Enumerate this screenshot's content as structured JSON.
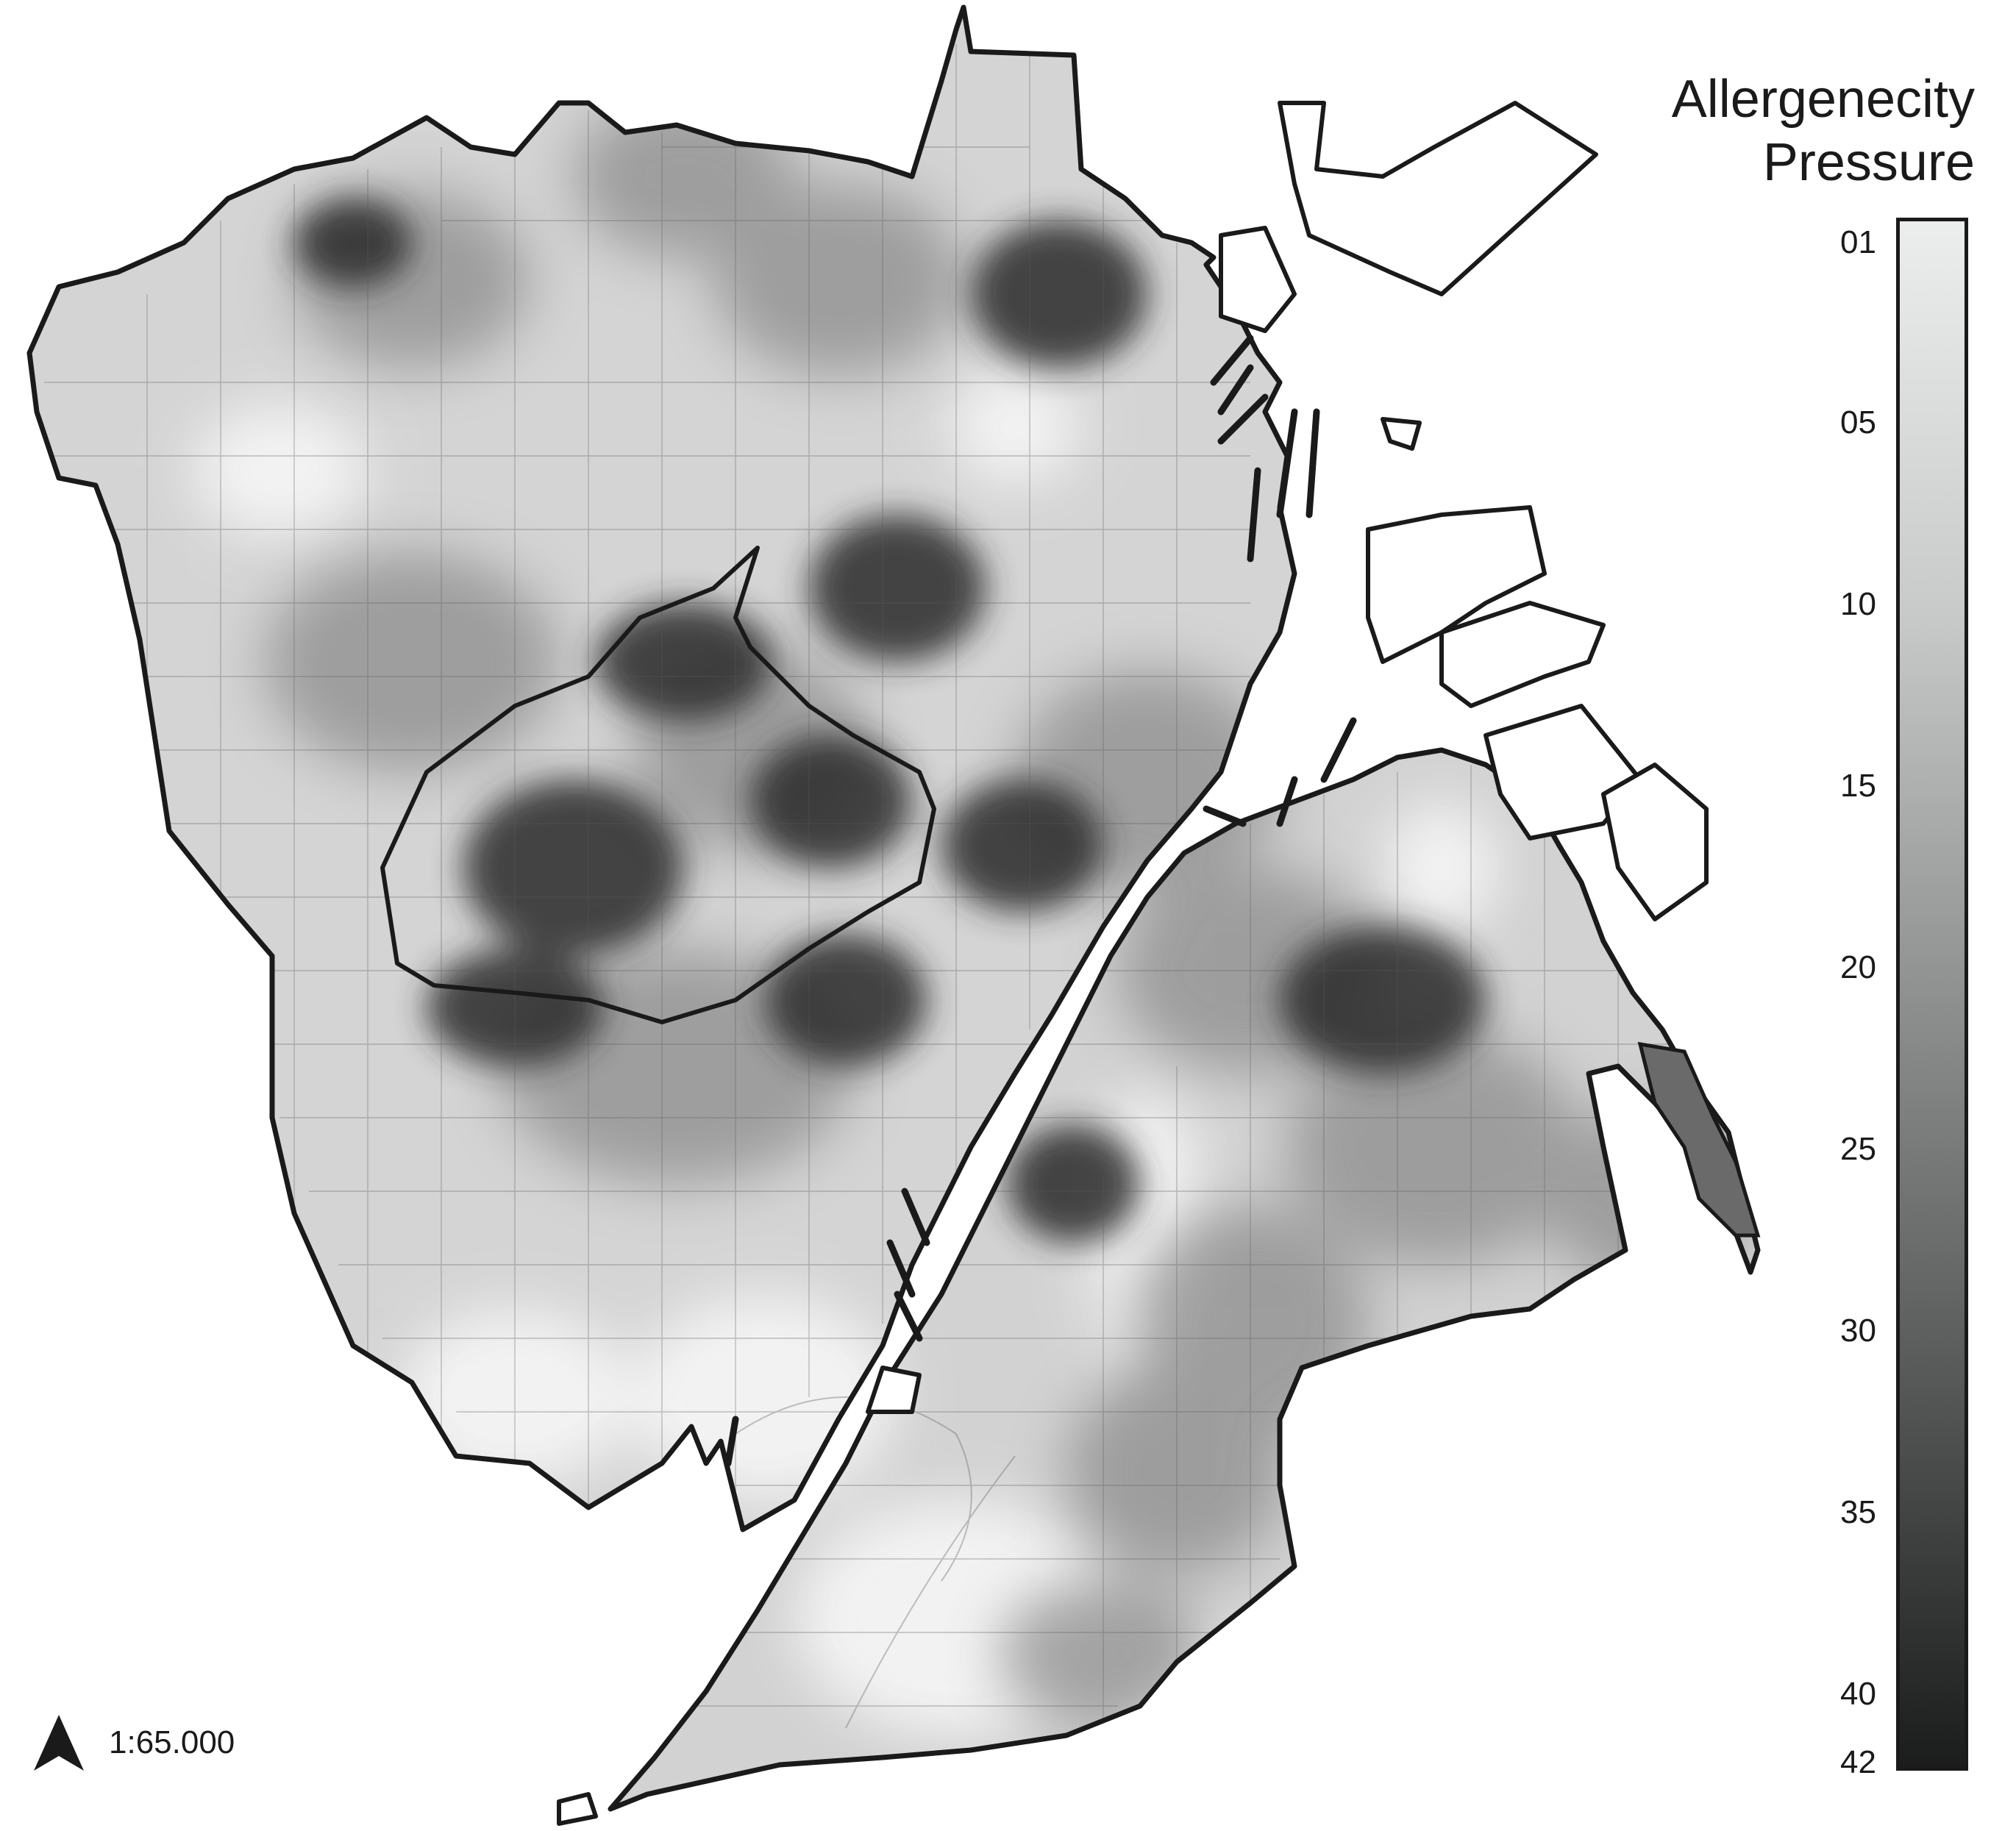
{
  "legend": {
    "title_line1": "Allergenecity",
    "title_line2": "Pressure",
    "ticks": [
      "01",
      "05",
      "10",
      "15",
      "20",
      "25",
      "30",
      "35",
      "40",
      "42"
    ],
    "ramp_colors": [
      "#eceded",
      "#1b1c1c"
    ]
  },
  "map": {
    "icon": "north-arrow-icon",
    "scale_text": "1:65.000",
    "boundary_color": "#1a1a1a",
    "land_color": "#d6d6d6",
    "hotspot_color": "#2b2b2b"
  }
}
